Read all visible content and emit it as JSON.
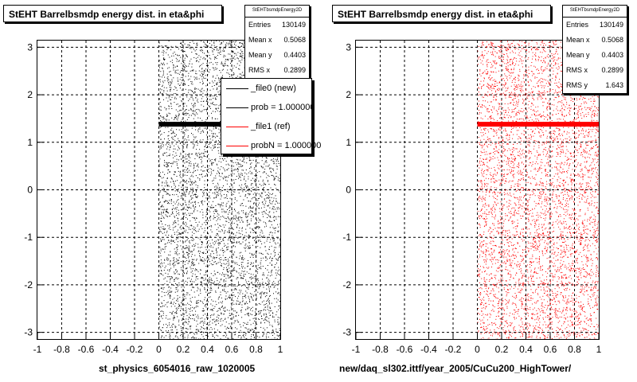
{
  "chart_data": [
    {
      "type": "scatter",
      "title": "StEHT Barrelbsmdp energy dist. in eta&phi",
      "xlabel": "st_physics_6054016_raw_1020005",
      "ylabel": "",
      "xlim": [
        -1,
        1
      ],
      "ylim": [
        -3.14,
        3.14
      ],
      "xticks": [
        -1,
        -0.8,
        -0.6,
        -0.4,
        -0.2,
        0,
        0.2,
        0.4,
        0.6,
        0.8,
        1
      ],
      "yticks": [
        -3,
        -2,
        -1,
        0,
        1,
        2,
        3
      ],
      "grid": true,
      "series": [
        {
          "color": "#000000",
          "x_range": [
            0,
            1
          ],
          "y_range": [
            -3.14,
            3.14
          ],
          "band_y": 1.38
        }
      ],
      "legend_position": "top-right"
    },
    {
      "type": "scatter",
      "title": "StEHT Barrelbsmdp energy dist. in eta&phi",
      "xlabel": "new/daq_sl302.ittf/year_2005/CuCu200_HighTower/",
      "ylabel": "",
      "xlim": [
        -1,
        1
      ],
      "ylim": [
        -3.14,
        3.14
      ],
      "xticks": [
        -1,
        -0.8,
        -0.6,
        -0.4,
        -0.2,
        0,
        0.2,
        0.4,
        0.6,
        0.8,
        1
      ],
      "yticks": [
        -3,
        -2,
        -1,
        0,
        1,
        2,
        3
      ],
      "grid": true,
      "series": [
        {
          "color": "#ff0000",
          "x_range": [
            0,
            1
          ],
          "y_range": [
            -3.14,
            3.14
          ],
          "band_y": 1.38
        }
      ]
    }
  ],
  "left": {
    "stats": {
      "name": "StEHTbsmdpEnergy2D",
      "rows": [
        {
          "label": "Entries",
          "value": "130149"
        },
        {
          "label": "Mean x",
          "value": "0.5068"
        },
        {
          "label": "Mean y",
          "value": "0.4403"
        },
        {
          "label": "RMS x",
          "value": "0.2899"
        }
      ]
    },
    "legend": [
      {
        "label": "_file0 (new)",
        "color": "#000000"
      },
      {
        "label": "prob = 1.000000",
        "color": "#000000"
      },
      {
        "label": "_file1 (ref)",
        "color": "#ff0000"
      },
      {
        "label": "probN = 1.000000",
        "color": "#ff0000"
      }
    ]
  },
  "right": {
    "stats": {
      "name": "StEHTbsmdpEnergy2D",
      "rows": [
        {
          "label": "Entries",
          "value": "130149"
        },
        {
          "label": "Mean x",
          "value": "0.5068"
        },
        {
          "label": "Mean y",
          "value": "0.4403"
        },
        {
          "label": "RMS x",
          "value": "0.2899"
        },
        {
          "label": "RMS y",
          "value": "1.643"
        }
      ]
    }
  }
}
